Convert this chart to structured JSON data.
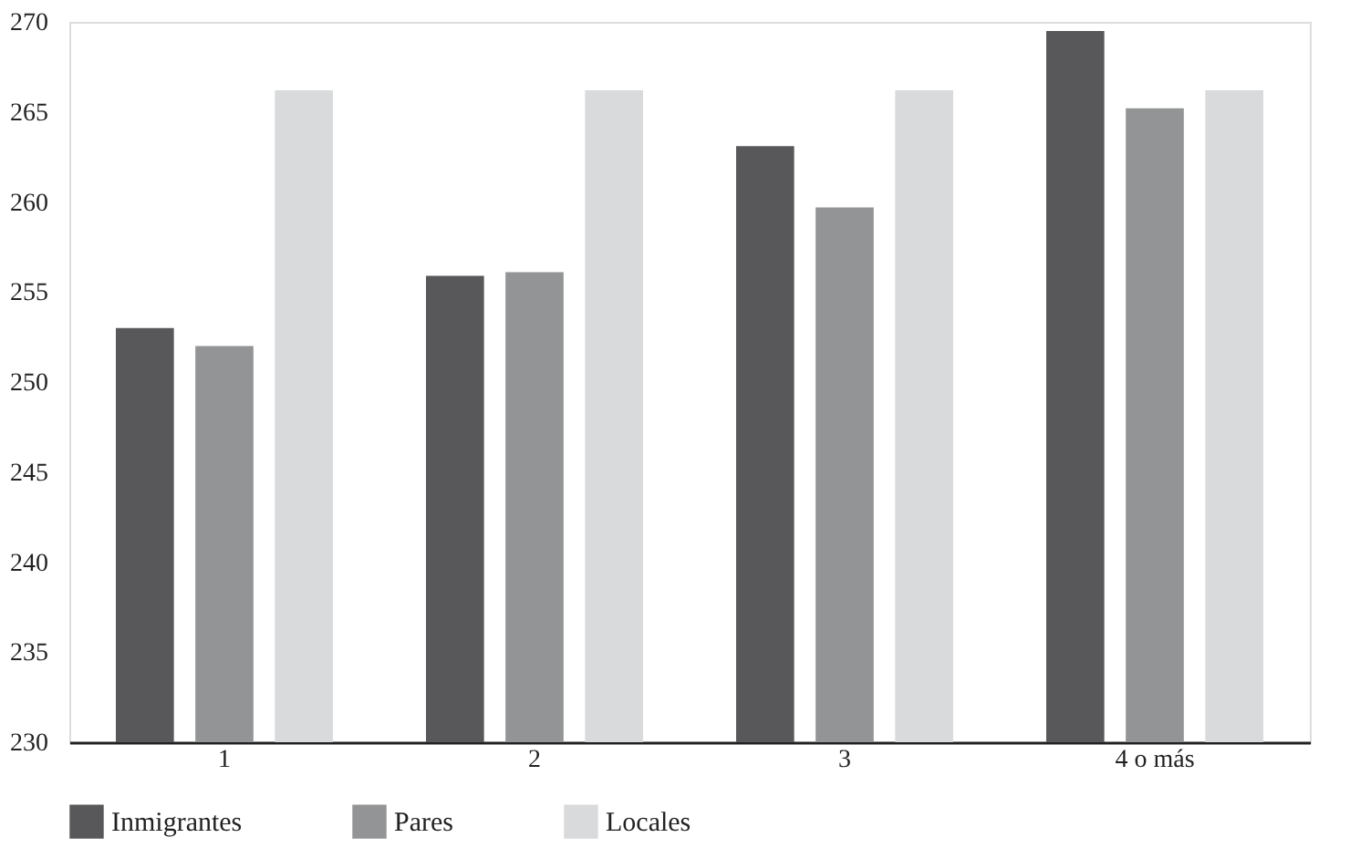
{
  "chart_data": {
    "type": "bar",
    "categories": [
      "1",
      "2",
      "3",
      "4 o más"
    ],
    "series": [
      {
        "name": "Inmigrantes",
        "color": "#58585a",
        "values": [
          253.0,
          255.9,
          263.1,
          269.5
        ]
      },
      {
        "name": "Pares",
        "color": "#939495",
        "values": [
          252.0,
          256.1,
          259.7,
          265.2
        ]
      },
      {
        "name": "Locales",
        "color": "#d9dadb",
        "values": [
          266.2,
          266.2,
          266.2,
          266.2
        ]
      }
    ],
    "ylim": [
      230,
      270
    ],
    "yticks": [
      230,
      235,
      240,
      245,
      250,
      255,
      260,
      265,
      270
    ],
    "grid": false,
    "legend": "bottom"
  }
}
